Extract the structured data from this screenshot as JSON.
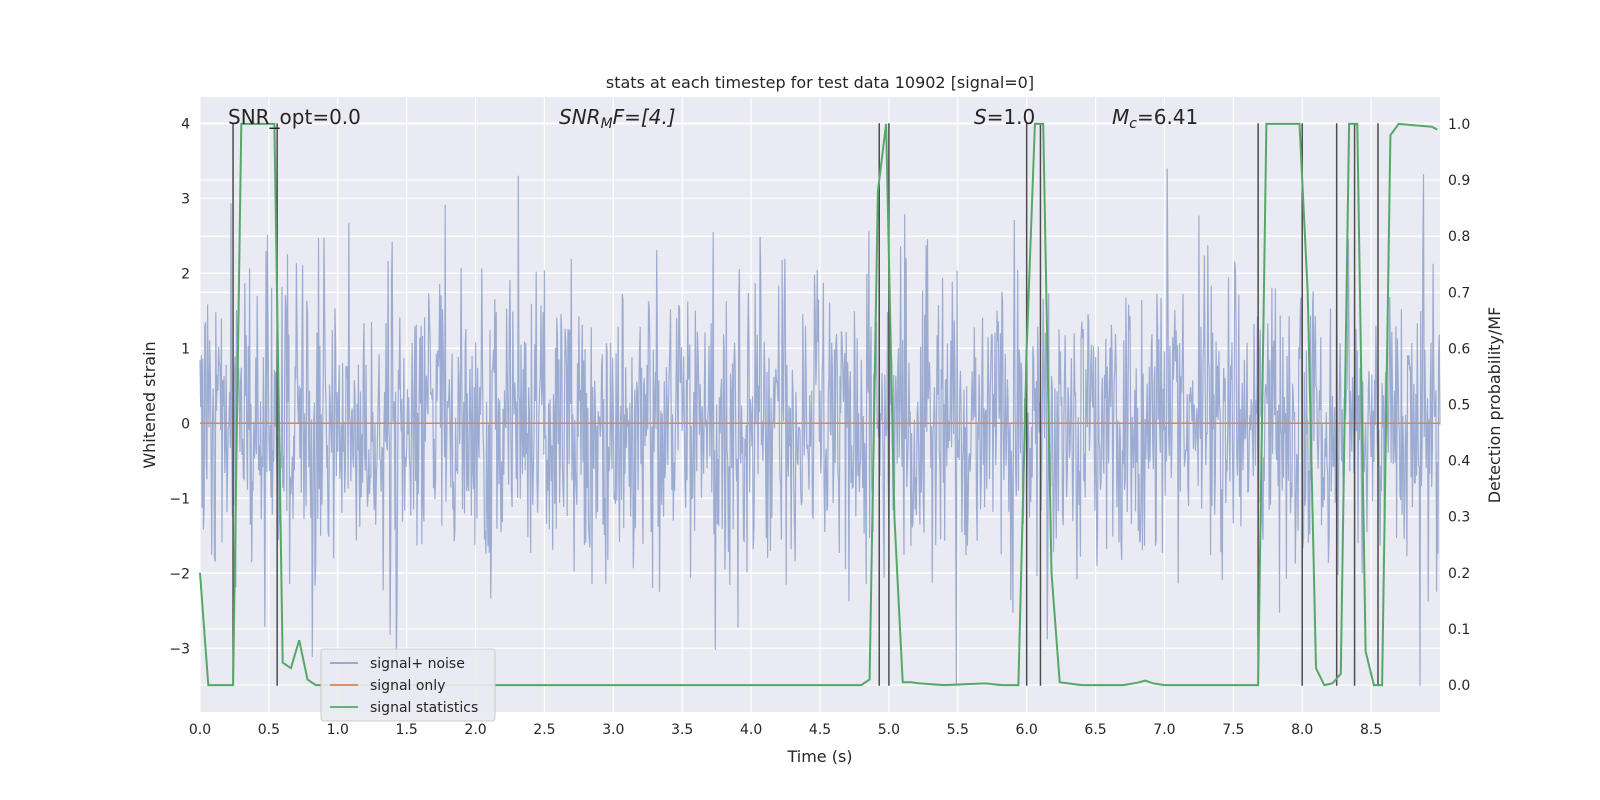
{
  "chart_data": {
    "type": "line",
    "title": "stats at each timestep for test data 10902 [signal=0]",
    "xlabel": "Time (s)",
    "ylabel": "Whitened strain",
    "ylabel_right": "Detection probability/MF",
    "xlim": [
      0.0,
      9.0
    ],
    "ylim": [
      -3.85,
      4.35
    ],
    "ylim_right": [
      -0.048,
      1.048
    ],
    "x_ticks": [
      0.0,
      0.5,
      1.0,
      1.5,
      2.0,
      2.5,
      3.0,
      3.5,
      4.0,
      4.5,
      5.0,
      5.5,
      6.0,
      6.5,
      7.0,
      7.5,
      8.0,
      8.5
    ],
    "x_tick_labels": [
      "0.0",
      "0.5",
      "1.0",
      "1.5",
      "2.0",
      "2.5",
      "3.0",
      "3.5",
      "4.0",
      "4.5",
      "5.0",
      "5.5",
      "6.0",
      "6.5",
      "7.0",
      "7.5",
      "8.0",
      "8.5"
    ],
    "y_ticks": [
      -3,
      -2,
      -1,
      0,
      1,
      2,
      3,
      4
    ],
    "y_tick_labels": [
      "−3",
      "−2",
      "−1",
      "0",
      "1",
      "2",
      "3",
      "4"
    ],
    "y_ticks_right": [
      0.0,
      0.1,
      0.2,
      0.3,
      0.4,
      0.5,
      0.6,
      0.7,
      0.8,
      0.9,
      1.0
    ],
    "y_tick_labels_right": [
      "0.0",
      "0.1",
      "0.2",
      "0.3",
      "0.4",
      "0.5",
      "0.6",
      "0.7",
      "0.8",
      "0.9",
      "1.0"
    ],
    "grid": true,
    "legend_position": "lower-left",
    "annotations": {
      "snr_opt": "SNR_opt=0.0",
      "snr_mf_main": "SNR",
      "snr_mf_sub": "M",
      "snr_mf_rest": "F=[4.]",
      "s_var": "S",
      "s_val": "=1.0",
      "mc_var": "M",
      "mc_sub": "c",
      "mc_val": "=6.41"
    },
    "series": [
      {
        "name": "signal+ noise",
        "color": "#8da0cb",
        "axis": "left",
        "note": "whitened noise trace, approx. standard normal, max ~4.0",
        "sample_rate_hz": 200,
        "envelope_max": 4.0
      },
      {
        "name": "signal only",
        "color": "#dd8452",
        "axis": "left",
        "x": [
          0.0,
          9.0
        ],
        "y": [
          0.0,
          0.0
        ]
      },
      {
        "name": "signal statistics",
        "color": "#55a868",
        "axis": "right",
        "x": [
          0.0,
          0.06,
          0.12,
          0.18,
          0.24,
          0.3,
          0.36,
          0.42,
          0.48,
          0.54,
          0.6,
          0.66,
          0.72,
          0.78,
          0.84,
          0.9,
          1.0,
          1.5,
          2.0,
          2.5,
          3.0,
          3.5,
          4.0,
          4.5,
          4.8,
          4.86,
          4.92,
          4.98,
          5.04,
          5.1,
          5.16,
          5.22,
          5.4,
          5.7,
          5.82,
          5.94,
          6.0,
          6.06,
          6.12,
          6.18,
          6.24,
          6.3,
          6.4,
          6.7,
          6.8,
          6.86,
          6.92,
          7.0,
          7.5,
          7.68,
          7.74,
          7.8,
          7.86,
          7.98,
          8.04,
          8.1,
          8.16,
          8.22,
          8.28,
          8.34,
          8.4,
          8.46,
          8.52,
          8.58,
          8.64,
          8.7,
          8.8,
          8.94,
          8.98
        ],
        "y": [
          0.2,
          0.0,
          0.0,
          0.0,
          0.0,
          1.0,
          1.0,
          1.0,
          1.0,
          1.0,
          0.04,
          0.03,
          0.08,
          0.01,
          0.0,
          0.0,
          0.0,
          0.0,
          0.0,
          0.0,
          0.0,
          0.0,
          0.0,
          0.0,
          0.0,
          0.01,
          0.88,
          1.0,
          0.3,
          0.005,
          0.005,
          0.003,
          0.0,
          0.003,
          0.0,
          0.0,
          0.6,
          1.0,
          1.0,
          0.2,
          0.005,
          0.003,
          0.0,
          0.0,
          0.004,
          0.008,
          0.003,
          0.0,
          0.0,
          0.0,
          1.0,
          1.0,
          1.0,
          1.0,
          0.7,
          0.03,
          0.0,
          0.003,
          0.02,
          1.0,
          1.0,
          0.06,
          0.0,
          0.0,
          0.98,
          1.0,
          0.998,
          0.995,
          0.99
        ]
      }
    ],
    "vertical_lines": {
      "color": "#4d4d4d",
      "x": [
        0.24,
        0.56,
        4.93,
        5.0,
        6.0,
        6.1,
        7.68,
        8.0,
        8.25,
        8.38,
        8.55
      ]
    }
  },
  "legend": {
    "items": [
      {
        "label": "signal+ noise",
        "color": "#8da0cb"
      },
      {
        "label": "signal only",
        "color": "#dd8452"
      },
      {
        "label": "signal statistics",
        "color": "#55a868"
      }
    ]
  }
}
